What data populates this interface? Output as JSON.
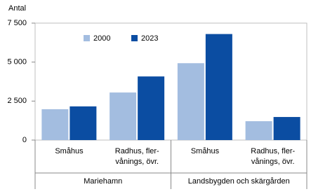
{
  "chart_data": {
    "type": "bar",
    "y_label": "Antal",
    "categories": [
      "Småhus",
      "Radhus, fler-\nvånings, övr.",
      "Småhus",
      "Radhus, fler-\nvånings, övr."
    ],
    "groups": [
      "Mariehamn",
      "Landsbygden och skärgården"
    ],
    "series": [
      {
        "name": "2000",
        "color": "#a3bde0",
        "values": [
          1980,
          3050,
          4930,
          1210
        ]
      },
      {
        "name": "2023",
        "color": "#0b4da2",
        "values": [
          2160,
          4080,
          6800,
          1480
        ]
      }
    ],
    "ylim": [
      0,
      7500
    ],
    "yticks": [
      0,
      {
        "value": 2500,
        "label": "2 500"
      },
      {
        "value": 5000,
        "label": "5 000"
      },
      {
        "value": 7500,
        "label": "7 500"
      }
    ],
    "grid": false
  }
}
